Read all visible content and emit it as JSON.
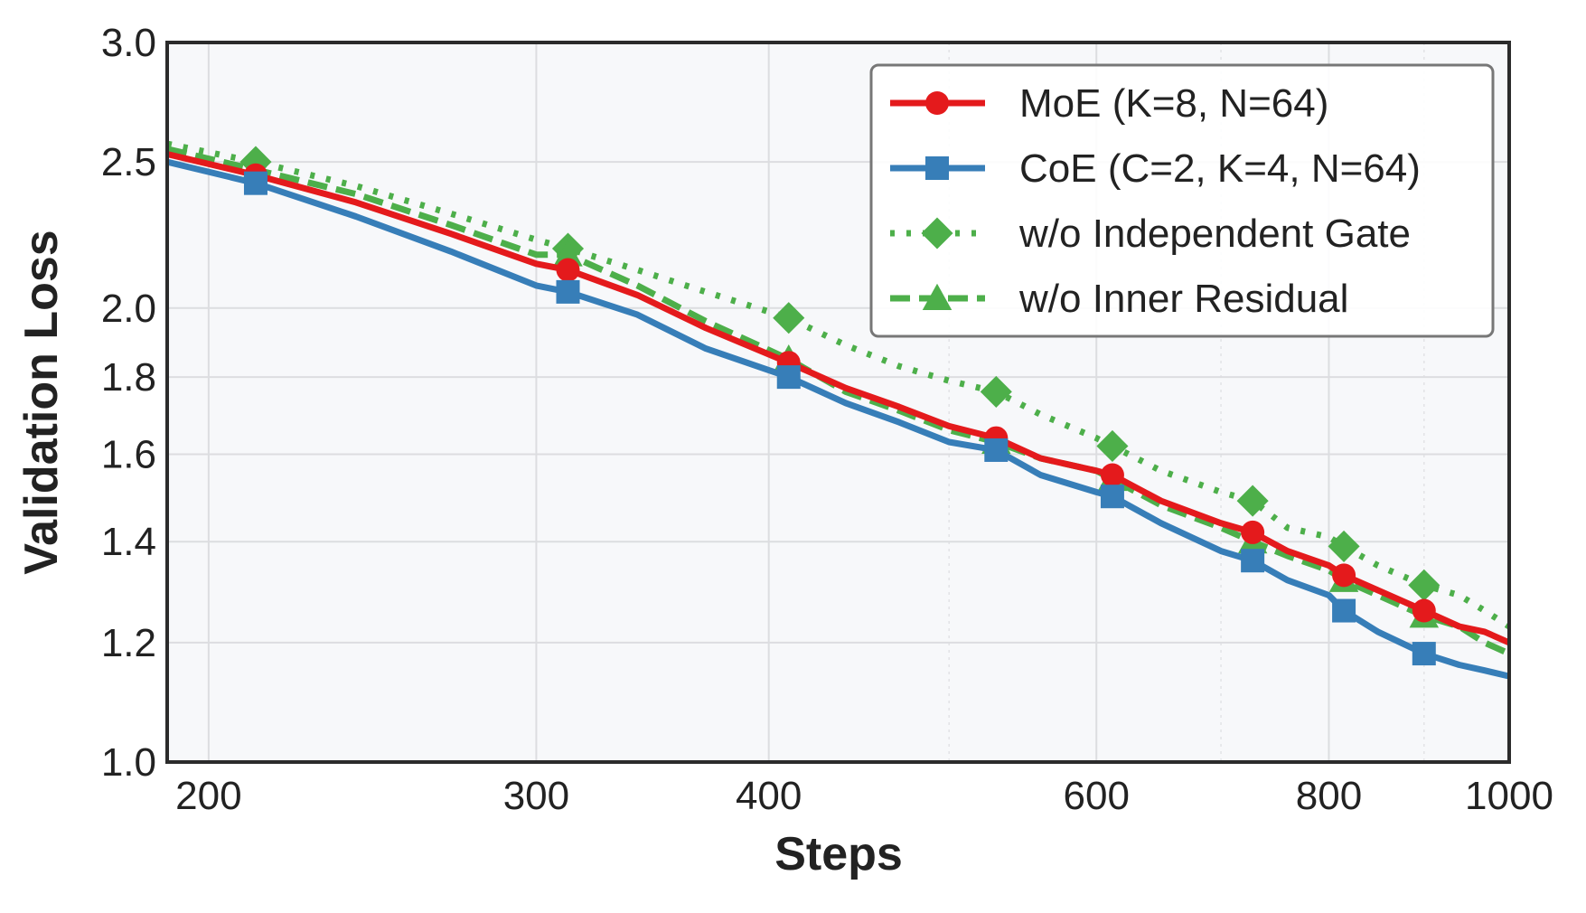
{
  "chart_data": {
    "type": "line",
    "title": "",
    "xlabel": "Steps",
    "ylabel": "Validation Loss",
    "xscale": "log",
    "yscale": "log",
    "xlim": [
      190,
      1000
    ],
    "ylim": [
      1.0,
      3.0
    ],
    "grid": true,
    "legend_position": "top-right",
    "x_ticks": [
      200,
      300,
      400,
      600,
      800,
      1000
    ],
    "x_tick_labels": [
      "200",
      "300",
      "400",
      "600",
      "800",
      "1000"
    ],
    "y_ticks": [
      1.0,
      1.2,
      1.4,
      1.6,
      1.8,
      2.0,
      2.5,
      3.0
    ],
    "y_tick_labels": [
      "1.0",
      "1.2",
      "1.4",
      "1.6",
      "1.8",
      "2.0",
      "2.5",
      "3.0"
    ],
    "series": [
      {
        "name": "MoE (K=8, N=64)",
        "color": "#e41a1c",
        "linestyle": "solid",
        "marker": "circle",
        "x": [
          190,
          212,
          240,
          270,
          300,
          312,
          340,
          370,
          410,
          440,
          470,
          500,
          530,
          560,
          600,
          612,
          650,
          700,
          728,
          760,
          800,
          815,
          850,
          900,
          940,
          970,
          1000
        ],
        "y": [
          2.53,
          2.45,
          2.35,
          2.24,
          2.14,
          2.12,
          2.04,
          1.94,
          1.84,
          1.77,
          1.72,
          1.67,
          1.64,
          1.59,
          1.56,
          1.55,
          1.49,
          1.44,
          1.42,
          1.38,
          1.35,
          1.33,
          1.3,
          1.26,
          1.23,
          1.22,
          1.2
        ]
      },
      {
        "name": "CoE (C=2, K=4, N=64)",
        "color": "#377eb8",
        "linestyle": "solid",
        "marker": "square",
        "x": [
          190,
          212,
          240,
          270,
          300,
          312,
          340,
          370,
          410,
          440,
          470,
          500,
          530,
          560,
          600,
          612,
          650,
          700,
          728,
          760,
          800,
          815,
          850,
          900,
          940,
          970,
          1000
        ],
        "y": [
          2.5,
          2.42,
          2.3,
          2.18,
          2.07,
          2.05,
          1.98,
          1.88,
          1.8,
          1.73,
          1.68,
          1.63,
          1.61,
          1.55,
          1.51,
          1.5,
          1.44,
          1.38,
          1.36,
          1.32,
          1.29,
          1.26,
          1.22,
          1.18,
          1.16,
          1.15,
          1.14
        ]
      },
      {
        "name": "w/o Independent Gate",
        "color": "#4daf4a",
        "linestyle": "dotted",
        "marker": "diamond",
        "x": [
          190,
          212,
          240,
          270,
          300,
          312,
          340,
          370,
          410,
          440,
          470,
          500,
          530,
          560,
          600,
          612,
          650,
          700,
          728,
          760,
          800,
          815,
          850,
          900,
          940,
          970,
          1000
        ],
        "y": [
          2.57,
          2.5,
          2.41,
          2.31,
          2.22,
          2.19,
          2.12,
          2.05,
          1.97,
          1.89,
          1.83,
          1.79,
          1.76,
          1.7,
          1.64,
          1.62,
          1.56,
          1.51,
          1.49,
          1.43,
          1.41,
          1.39,
          1.35,
          1.31,
          1.29,
          1.26,
          1.23
        ]
      },
      {
        "name": "w/o Inner Residual",
        "color": "#4daf4a",
        "linestyle": "dashed",
        "marker": "triangle",
        "x": [
          190,
          212,
          240,
          270,
          300,
          312,
          340,
          370,
          410,
          440,
          470,
          500,
          530,
          560,
          600,
          612,
          650,
          700,
          728,
          760,
          800,
          815,
          850,
          900,
          940,
          970,
          1000
        ],
        "y": [
          2.55,
          2.47,
          2.38,
          2.27,
          2.17,
          2.17,
          2.07,
          1.96,
          1.85,
          1.76,
          1.71,
          1.66,
          1.63,
          1.59,
          1.56,
          1.54,
          1.48,
          1.43,
          1.4,
          1.37,
          1.34,
          1.32,
          1.29,
          1.25,
          1.23,
          1.2,
          1.18
        ]
      }
    ],
    "marker_x": [
      212,
      312,
      410,
      530,
      612,
      728,
      815,
      900
    ]
  }
}
